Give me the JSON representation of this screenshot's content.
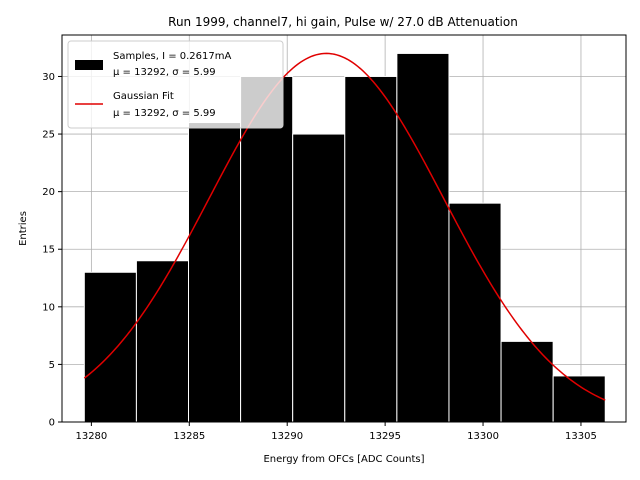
{
  "chart_data": {
    "type": "bar",
    "title": "Run 1999, channel7, hi gain, Pulse w/ 27.0 dB Attenuation",
    "xlabel": "Energy from OFCs [ADC Counts]",
    "ylabel": "Entries",
    "xlim": [
      13278.5,
      13307.3
    ],
    "ylim": [
      0,
      33.6
    ],
    "xticks": [
      13280,
      13285,
      13290,
      13295,
      13300,
      13305
    ],
    "yticks": [
      0,
      5,
      10,
      15,
      20,
      25,
      30
    ],
    "grid": true,
    "legend_position": "top-left",
    "bin_edges": [
      13279.64,
      13282.3,
      13284.96,
      13287.62,
      13290.28,
      13292.94,
      13295.6,
      13298.26,
      13300.92,
      13303.58,
      13306.24
    ],
    "series": [
      {
        "name": "Samples, I = 0.2617mA",
        "stats": "μ = 13292, σ = 5.99",
        "kind": "histogram",
        "values": [
          13,
          14,
          26,
          30,
          25,
          30,
          32,
          19,
          7,
          4
        ],
        "color": "#000000",
        "edgecolor": "#ffffff"
      },
      {
        "name": "Gaussian Fit",
        "stats": "μ = 13292, σ = 5.99",
        "kind": "line",
        "color": "#e00000",
        "amplitude": 32.0,
        "mean": 13292.0,
        "sigma": 5.99,
        "x_range": [
          13279.64,
          13306.24
        ]
      }
    ]
  }
}
